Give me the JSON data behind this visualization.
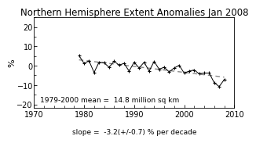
{
  "title": "Northern Hemisphere Extent Anomalies Jan 2008",
  "ylabel": "%",
  "xlim": [
    1970,
    2010
  ],
  "ylim": [
    -22,
    25
  ],
  "yticks": [
    -20,
    -10,
    0,
    10,
    20
  ],
  "xticks": [
    1970,
    1980,
    1990,
    2000,
    2010
  ],
  "annotation1": "1979-2000 mean =  14.8 million sq km",
  "annotation2": "slope =  -3.2(+/-0.7) % per decade",
  "years": [
    1979,
    1980,
    1981,
    1982,
    1983,
    1984,
    1985,
    1986,
    1987,
    1988,
    1989,
    1990,
    1991,
    1992,
    1993,
    1994,
    1995,
    1996,
    1997,
    1998,
    1999,
    2000,
    2001,
    2002,
    2003,
    2004,
    2005,
    2006,
    2007,
    2008
  ],
  "anomalies": [
    5.2,
    1.2,
    2.5,
    -3.5,
    1.8,
    1.5,
    -0.8,
    2.3,
    0.3,
    1.2,
    -2.8,
    1.8,
    -1.2,
    1.8,
    -2.8,
    2.2,
    -1.8,
    -0.8,
    -3.2,
    -1.2,
    0.2,
    -3.8,
    -2.8,
    -2.2,
    -4.2,
    -3.8,
    -3.8,
    -8.8,
    -10.8,
    -7.2
  ],
  "slope_start_year": 1979,
  "slope_end_year": 2008,
  "slope_pct_per_decade": -3.2,
  "line_color": "#000000",
  "trend_color": "#888888",
  "bg_color": "#ffffff",
  "font_size_title": 8.5,
  "font_size_ticks": 7,
  "font_size_annot": 6.5,
  "font_size_ylabel": 8
}
